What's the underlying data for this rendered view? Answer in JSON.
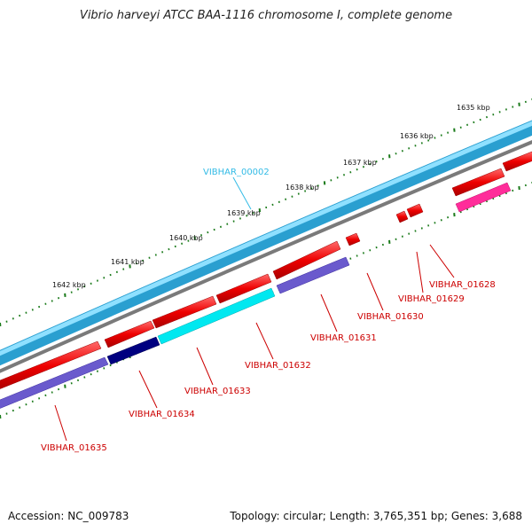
{
  "title": "Vibrio harveyi ATCC BAA-1116 chromosome I, complete genome",
  "footer": {
    "accession": "Accession: NC_009783",
    "summary": "Topology: circular; Length: 3,765,351 bp; Genes: 3,688"
  },
  "scale": {
    "tick_labels": [
      "1635 kbp",
      "1636 kbp",
      "1637 kbp",
      "1638 kbp",
      "1639 kbp",
      "1640 kbp",
      "1641 kbp",
      "1642 kbp"
    ]
  },
  "genes": {
    "VIBHAR_00002": "VIBHAR_00002",
    "VIBHAR_01628": "VIBHAR_01628",
    "VIBHAR_01629": "VIBHAR_01629",
    "VIBHAR_01630": "VIBHAR_01630",
    "VIBHAR_01631": "VIBHAR_01631",
    "VIBHAR_01632": "VIBHAR_01632",
    "VIBHAR_01633": "VIBHAR_01633",
    "VIBHAR_01634": "VIBHAR_01634",
    "VIBHAR_01635": "VIBHAR_01635"
  },
  "colors": {
    "backbone": "#2aa6d8",
    "backbone_light": "#7fd6f5",
    "gene_red": "#ee0000",
    "gene_purple": "#6a5acd",
    "gene_cyan": "#00f0f0",
    "gene_navy": "#000080",
    "gene_pink": "#ff1493",
    "ticks": "#1a7a1a",
    "label_red": "#cc0000",
    "label_cyan": "#33bbe6"
  }
}
